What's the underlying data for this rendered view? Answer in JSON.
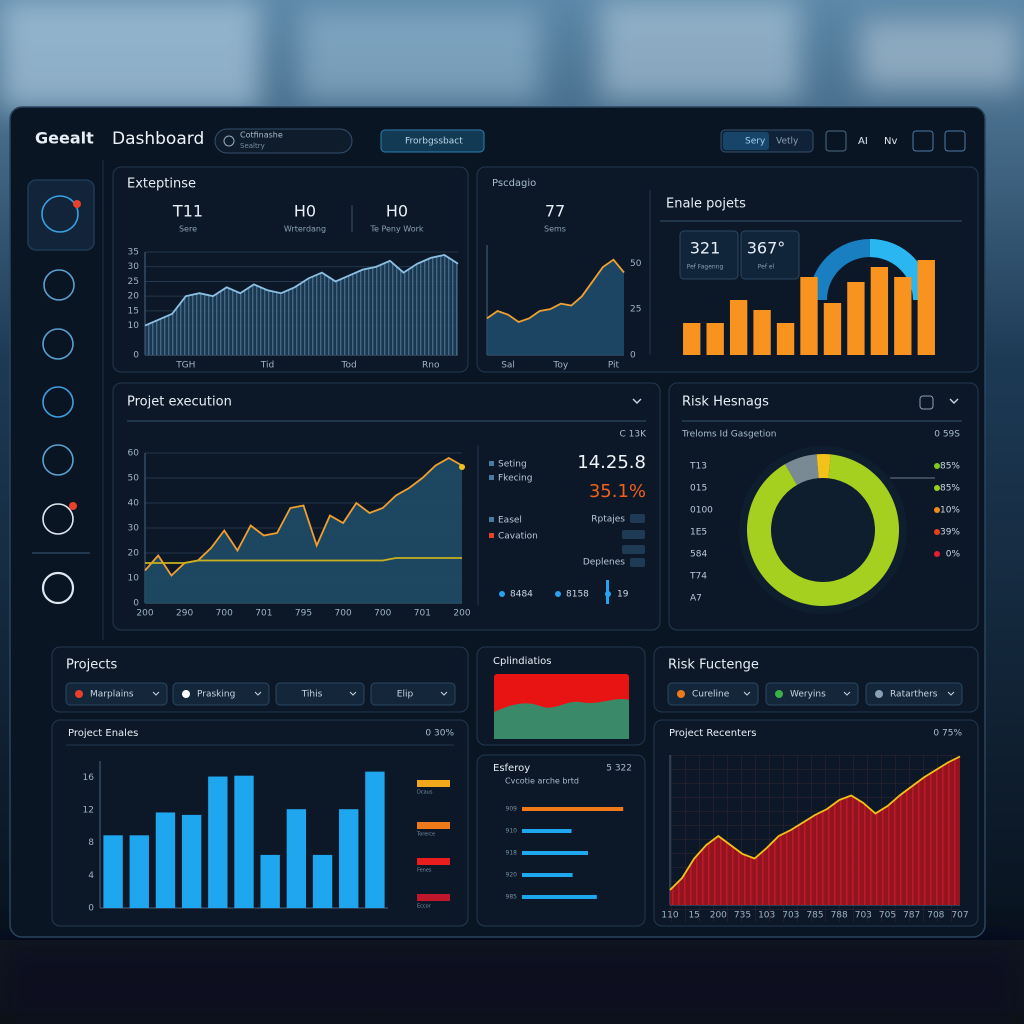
{
  "header": {
    "brand": "Geealt",
    "title": "Dashboard",
    "search": "Cotfinashe",
    "search_sub": "Sealtry",
    "button": "Frorbgssbact",
    "toggle": [
      "Sery",
      "Vetly"
    ],
    "icons": [
      "AI",
      "Nv"
    ]
  },
  "projects": {
    "title": "Projects",
    "filters": [
      "Marplains",
      "Prasking",
      "Tihis",
      "Elip"
    ]
  },
  "risk_filters": {
    "title": "Risk Fuctenge",
    "filters": [
      "Cureline",
      "Weryins",
      "Ratarthers"
    ]
  },
  "cplin": {
    "title": "Cplindiatios"
  },
  "chart_data": [
    {
      "type": "area",
      "title": "Exteptinse",
      "stats": [
        {
          "value": "T11",
          "label": "Sere"
        },
        {
          "value": "H0",
          "label": "Wrterdang"
        },
        {
          "value": "H0",
          "label": "Te Peny Work"
        }
      ],
      "categories": [
        null,
        null,
        null,
        "TGH",
        null,
        null,
        null,
        null,
        null,
        "Tid",
        null,
        null,
        null,
        null,
        null,
        "Tod",
        null,
        null,
        null,
        null,
        null,
        "Rno",
        null,
        null
      ],
      "values": [
        10,
        12,
        14,
        20,
        21,
        20,
        23,
        21,
        24,
        22,
        21,
        23,
        26,
        28,
        25,
        27,
        29,
        30,
        32,
        28,
        31,
        33,
        34,
        31
      ],
      "color": "#8cc0e4",
      "fill": "#1d3a55",
      "ylim": [
        0,
        35
      ],
      "yticks": [
        0,
        10,
        15,
        20,
        25,
        30,
        35
      ],
      "grid": true,
      "yaxis": "left"
    },
    {
      "type": "area",
      "title": "Pscdagio",
      "stats": [
        {
          "value": "77",
          "label": "Sems"
        }
      ],
      "categories": [
        null,
        null,
        "Sal",
        null,
        null,
        null,
        null,
        "Toy",
        null,
        null,
        null,
        null,
        "Pit",
        null
      ],
      "values": [
        20,
        24,
        22,
        18,
        20,
        24,
        25,
        28,
        27,
        32,
        40,
        48,
        52,
        45
      ],
      "color": "#f0a030",
      "fill": "#1e4a6a",
      "ylim": [
        0,
        60
      ],
      "yticks": [
        0,
        25,
        50
      ],
      "grid": false,
      "yaxis": "right"
    },
    {
      "type": "bar",
      "title": "Enale pojets",
      "stats": [
        {
          "value": "321",
          "label": "Pef Fagenng"
        },
        {
          "value": "367°",
          "label": "Pef el"
        }
      ],
      "values": [
        32,
        32,
        55,
        45,
        32,
        78,
        52,
        73,
        88,
        78,
        95
      ],
      "color": "#f7931e",
      "ylim": [
        0,
        100
      ]
    },
    {
      "type": "area",
      "title": "Projet execution",
      "note": "C 13K",
      "categories": [
        "200",
        null,
        null,
        "290",
        null,
        null,
        "700",
        null,
        null,
        "701",
        null,
        null,
        "795",
        null,
        null,
        "700",
        null,
        null,
        "700",
        null,
        null,
        "701",
        null,
        null,
        "200"
      ],
      "series": [
        {
          "name": "Seting",
          "color": "#f0a030",
          "fill": "#1f4d66",
          "values": [
            13,
            19,
            11,
            16,
            17,
            22,
            29,
            21,
            31,
            27,
            28,
            38,
            39,
            23,
            35,
            32,
            40,
            36,
            38,
            43,
            46,
            50,
            55,
            58,
            55
          ]
        },
        {
          "name": "Fkecing",
          "color": "#c8b020",
          "values": [
            16,
            16,
            16,
            16,
            17,
            17,
            17,
            17,
            17,
            17,
            17,
            17,
            17,
            17,
            17,
            17,
            17,
            17,
            17,
            18,
            18,
            18,
            18,
            18,
            18
          ]
        }
      ],
      "ylim": [
        0,
        60
      ],
      "yticks": [
        0,
        10,
        20,
        30,
        40,
        50,
        60
      ],
      "grid": true,
      "yaxis": "left",
      "extra_legend": [
        "Easel",
        "Cavation"
      ],
      "big_value": "14.25.8",
      "big_percent": "35.1%",
      "tags": [
        "Rptajes",
        "Deplenes"
      ],
      "footer": [
        "8484",
        "8158",
        "19"
      ]
    },
    {
      "type": "pie",
      "title": "Risk Hesnags",
      "subtitle": "Treloms Id Gasgetion",
      "note": "0 59S",
      "values": [
        7,
        3,
        90
      ],
      "colors": [
        "#7a8a95",
        "#f2c21a",
        "#a6d020"
      ],
      "side_labels": [
        "T13",
        "015",
        "0100",
        "1E5",
        "584",
        "T74",
        "A7"
      ],
      "legend": [
        {
          "label": "85%",
          "color": "#7ecb20"
        },
        {
          "label": "85%",
          "color": "#9ad020"
        },
        {
          "label": "10%",
          "color": "#f08a1a"
        },
        {
          "label": "39%",
          "color": "#e8401a"
        },
        {
          "label": "0%",
          "color": "#e81e2e"
        }
      ]
    },
    {
      "type": "bar",
      "title": "Project Enales",
      "note": "0 30%",
      "values": [
        8.9,
        8.9,
        11.7,
        11.4,
        16.1,
        16.2,
        6.5,
        12.1,
        6.5,
        12.1,
        16.7
      ],
      "color": "#1ea7ee",
      "ylim": [
        0,
        18
      ],
      "yticks": [
        0,
        4,
        8,
        12,
        16
      ],
      "yaxis": "left",
      "legend": [
        {
          "label": "Dcaus",
          "color": "#f2a81a"
        },
        {
          "label": "Torerce",
          "color": "#f07a1a"
        },
        {
          "label": "Fenes",
          "color": "#e81e1e"
        },
        {
          "label": "Eccor",
          "color": "#c0182a"
        }
      ]
    },
    {
      "type": "hbar",
      "title": "Esferoy",
      "note": "5 322",
      "subtitle": "Cvcotie arche brtd",
      "categories": [
        "909",
        "910",
        "918",
        "920",
        "985"
      ],
      "values": [
        9.2,
        4.5,
        6,
        4.6,
        6.8
      ],
      "colors": [
        "#f07a1a",
        "#1ea7ee",
        "#1ea7ee",
        "#1ea7ee",
        "#1ea7ee"
      ],
      "xlim": [
        0,
        10
      ]
    },
    {
      "type": "area",
      "title": "Project Recenters",
      "note": "0 75%",
      "categories": [
        "110",
        null,
        "15",
        null,
        "200",
        null,
        "735",
        null,
        "103",
        null,
        "703",
        null,
        "785",
        null,
        "788",
        null,
        "703",
        null,
        "705",
        null,
        "787",
        null,
        "708",
        null,
        "707"
      ],
      "values": [
        10,
        18,
        31,
        40,
        46,
        40,
        34,
        31,
        38,
        46,
        50,
        55,
        60,
        64,
        70,
        73,
        68,
        61,
        66,
        73,
        79,
        85,
        90,
        95,
        99
      ],
      "color": "#f2c21a",
      "fill": "#a3121f",
      "ylim": [
        0,
        100
      ],
      "grid": false
    }
  ]
}
